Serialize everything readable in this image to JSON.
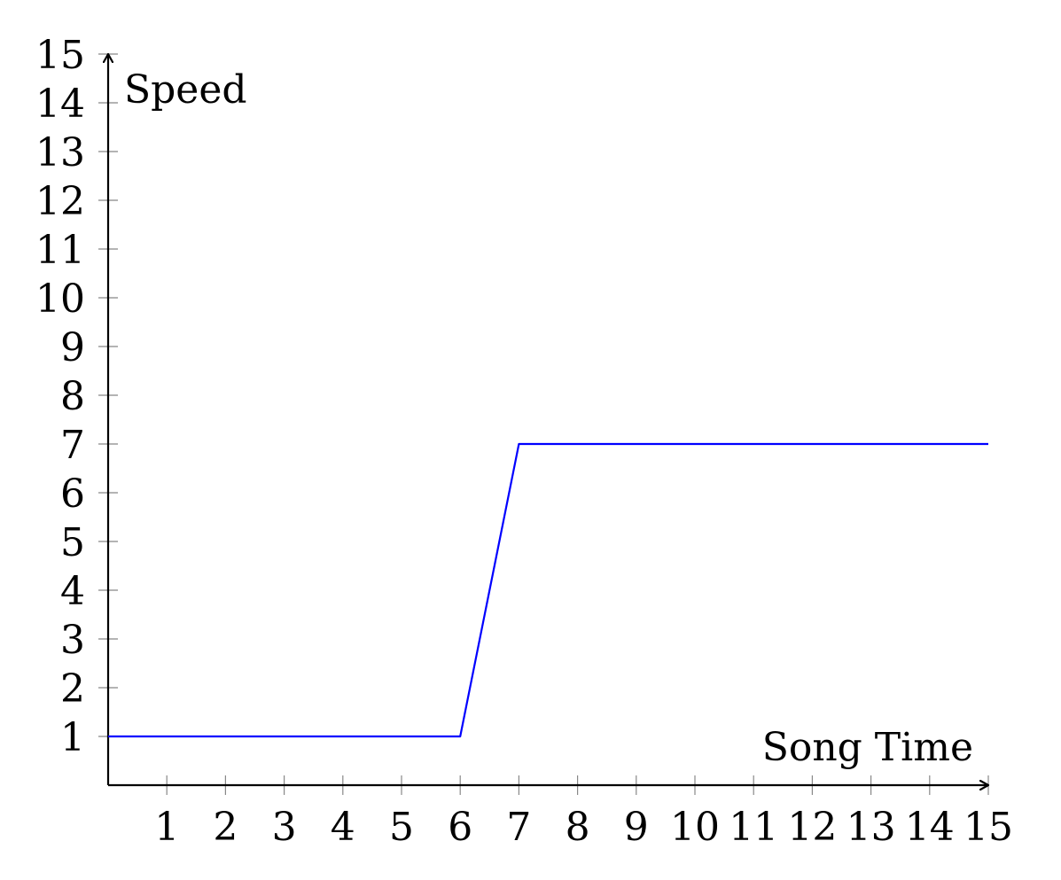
{
  "chart_data": {
    "type": "line",
    "title": "",
    "xlabel": "Song Time",
    "ylabel": "Speed",
    "xlim": [
      0,
      15
    ],
    "ylim": [
      0,
      15
    ],
    "xticks": [
      1,
      2,
      3,
      4,
      5,
      6,
      7,
      8,
      9,
      10,
      11,
      12,
      13,
      14,
      15
    ],
    "yticks": [
      1,
      2,
      3,
      4,
      5,
      6,
      7,
      8,
      9,
      10,
      11,
      12,
      13,
      14,
      15
    ],
    "grid": false,
    "series": [
      {
        "color": "#0000ff",
        "x": [
          0,
          6,
          7,
          15
        ],
        "y": [
          1,
          1,
          7,
          7
        ]
      }
    ]
  }
}
